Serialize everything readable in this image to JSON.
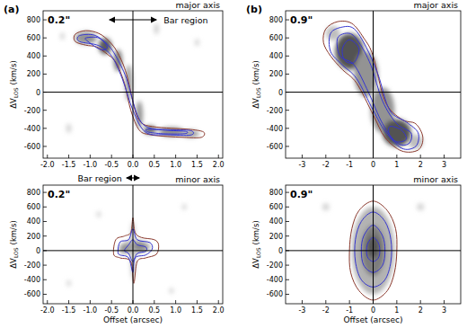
{
  "chart_data": [
    {
      "type": "contour",
      "panel_label": "(a)",
      "title": "major axis",
      "annotations": [
        {
          "text": "0.2\""
        },
        {
          "text": "Bar region",
          "x": [
            -0.55,
            0.55
          ]
        }
      ],
      "xlim": [
        -2.1,
        2.1
      ],
      "xticks": [
        {
          "value": -2,
          "label": "-2.0"
        },
        -1.5,
        {
          "value": -1,
          "label": "-1.0"
        },
        -0.5,
        {
          "value": 0,
          "label": "0.0"
        },
        0.5,
        {
          "value": 1,
          "label": "1.0"
        },
        1.5,
        {
          "value": 2,
          "label": "2.0"
        }
      ],
      "ylim": [
        -730,
        900
      ],
      "yticks": [
        -600,
        -400,
        -200,
        0,
        200,
        400,
        600,
        800
      ],
      "ylabel": [
        "ΔV",
        "LOS",
        "(km/s)"
      ],
      "hlines": [
        0
      ],
      "vlines": [
        0
      ],
      "emission": [
        {
          "x": -1.1,
          "y": 600,
          "dx": 0.25,
          "dy": 70,
          "level": 0.5
        },
        {
          "x": -0.65,
          "y": 510,
          "dx": 0.15,
          "dy": 90,
          "level": 0.75
        },
        {
          "x": -0.35,
          "y": 350,
          "dx": 0.1,
          "dy": 120,
          "level": 0.6
        },
        {
          "x": -0.1,
          "y": 100,
          "dx": 0.08,
          "dy": 200,
          "level": 0.45
        },
        {
          "x": 0.15,
          "y": -250,
          "dx": 0.08,
          "dy": 150,
          "level": 0.5
        },
        {
          "x": 0.4,
          "y": -420,
          "dx": 0.15,
          "dy": 50,
          "level": 0.65
        },
        {
          "x": 0.9,
          "y": -440,
          "dx": 0.3,
          "dy": 50,
          "level": 0.55
        },
        {
          "x": 1.35,
          "y": -460,
          "dx": 0.2,
          "dy": 40,
          "level": 0.45
        },
        {
          "x": 0.55,
          "y": 700,
          "dx": 0.05,
          "dy": 60,
          "level": 0.25
        },
        {
          "x": -1.5,
          "y": -400,
          "dx": 0.06,
          "dy": 50,
          "level": 0.2
        },
        {
          "x": 1.5,
          "y": 550,
          "dx": 0.05,
          "dy": 40,
          "level": 0.2
        },
        {
          "x": -1.65,
          "y": 620,
          "dx": 0.05,
          "dy": 40,
          "level": 0.2
        }
      ],
      "series": [
        {
          "color": "#8b3a2e",
          "x": [
            -1.35,
            -1.1,
            -0.8,
            -0.55,
            -0.35,
            -0.15,
            0.05,
            0.2,
            0.45,
            0.9,
            1.3,
            1.65,
            1.6,
            1.2,
            0.8,
            0.4,
            0.15,
            -0.05,
            -0.2,
            -0.4,
            -0.6,
            -0.85,
            -1.1,
            -1.35
          ],
          "y": [
            640,
            680,
            650,
            560,
            430,
            200,
            -200,
            -340,
            -380,
            -400,
            -410,
            -440,
            -500,
            -500,
            -490,
            -470,
            -420,
            -200,
            100,
            330,
            420,
            500,
            520,
            560
          ]
        },
        {
          "color": "#3535d0",
          "x": [
            -1.25,
            -0.9,
            -0.6,
            -0.4,
            -0.15,
            0.1,
            0.35,
            0.8,
            1.35,
            1.35,
            0.8,
            0.3,
            0.0,
            -0.25,
            -0.5,
            -0.8,
            -1.25
          ],
          "y": [
            625,
            630,
            530,
            400,
            150,
            -250,
            -390,
            -415,
            -425,
            -475,
            -470,
            -445,
            -200,
            150,
            400,
            515,
            560
          ]
        },
        {
          "color": "#3535d0",
          "x": [
            -1.1,
            -0.8,
            -0.6,
            -0.75,
            -1.05
          ],
          "y": [
            600,
            600,
            500,
            470,
            560
          ]
        },
        {
          "color": "#3535d0",
          "x": [
            0.35,
            0.9,
            1.25,
            1.2,
            0.7,
            0.35
          ],
          "y": [
            -410,
            -425,
            -435,
            -460,
            -460,
            -440
          ]
        }
      ]
    },
    {
      "type": "contour",
      "title": "minor axis",
      "annotations": [
        {
          "text": "0.2\""
        },
        {
          "text": "Bar region",
          "x": [
            -0.15,
            0.15
          ]
        }
      ],
      "xlim": [
        -2.1,
        2.1
      ],
      "xticks": [
        {
          "value": -2,
          "label": "-2.0"
        },
        -1.5,
        {
          "value": -1,
          "label": "-1.0"
        },
        -0.5,
        {
          "value": 0,
          "label": "0.0"
        },
        0.5,
        {
          "value": 1,
          "label": "1.0"
        },
        1.5,
        {
          "value": 2,
          "label": "2.0"
        }
      ],
      "ylim": [
        -730,
        900
      ],
      "yticks": [
        -600,
        -400,
        -200,
        0,
        200,
        400,
        600,
        800
      ],
      "xlabel": "Offset (arcsec)",
      "ylabel": [
        "ΔV",
        "LOS",
        "(km/s)"
      ],
      "hlines": [
        0
      ],
      "vlines": [
        0
      ],
      "emission": [
        {
          "x": 0.05,
          "y": 50,
          "dx": 0.35,
          "dy": 80,
          "level": 0.45
        },
        {
          "x": 0.0,
          "y": 0,
          "dx": 0.05,
          "dy": 400,
          "level": 0.35
        },
        {
          "x": 0.15,
          "y": 70,
          "dx": 0.15,
          "dy": 60,
          "level": 0.55
        },
        {
          "x": -0.2,
          "y": 20,
          "dx": 0.12,
          "dy": 60,
          "level": 0.5
        },
        {
          "x": -1.5,
          "y": -450,
          "dx": 0.05,
          "dy": 40,
          "level": 0.2
        },
        {
          "x": -0.8,
          "y": 500,
          "dx": 0.05,
          "dy": 40,
          "level": 0.2
        },
        {
          "x": 1.2,
          "y": 600,
          "dx": 0.05,
          "dy": 40,
          "level": 0.2
        },
        {
          "x": 0.9,
          "y": -550,
          "dx": 0.05,
          "dy": 40,
          "level": 0.2
        }
      ],
      "series": [
        {
          "color": "#8b3a2e",
          "x": [
            -0.45,
            -0.4,
            -0.2,
            -0.05,
            0.0,
            0.05,
            0.2,
            0.5,
            0.6,
            0.55,
            0.3,
            0.1,
            0.02,
            -0.05,
            -0.3
          ],
          "y": [
            -50,
            150,
            200,
            250,
            450,
            250,
            180,
            150,
            80,
            -50,
            -100,
            -150,
            -450,
            -150,
            -100
          ]
        },
        {
          "color": "#3535d0",
          "x": [
            -0.35,
            -0.3,
            -0.1,
            0.0,
            0.1,
            0.4,
            0.45,
            0.3,
            0.05,
            0.0,
            -0.1,
            -0.3
          ],
          "y": [
            -20,
            120,
            150,
            300,
            150,
            110,
            20,
            -60,
            -100,
            -300,
            -100,
            -60
          ]
        },
        {
          "color": "#3535d0",
          "x": [
            -0.2,
            -0.1,
            0.0,
            0.1,
            0.3,
            0.3,
            0.1,
            0.0,
            -0.1
          ],
          "y": [
            0,
            80,
            150,
            80,
            50,
            -10,
            -40,
            -150,
            -40
          ]
        }
      ]
    },
    {
      "type": "contour",
      "panel_label": "(b)",
      "title": "major axis",
      "annotations": [
        {
          "text": "0.9\""
        }
      ],
      "xlim": [
        -3.7,
        3.7
      ],
      "xticks": [
        -3,
        -2,
        -1,
        0,
        1,
        2,
        3
      ],
      "ylim": [
        -730,
        900
      ],
      "yticks": [
        -600,
        -400,
        -200,
        0,
        200,
        400,
        600,
        800
      ],
      "ylabel": [
        "ΔV",
        "LOS",
        "(km/s)"
      ],
      "hlines": [
        0
      ],
      "vlines": [
        0
      ],
      "emission": [
        {
          "x": -1.0,
          "y": 450,
          "dx": 0.6,
          "dy": 200,
          "level": 0.8
        },
        {
          "x": -0.3,
          "y": 200,
          "dx": 0.5,
          "dy": 250,
          "level": 0.5
        },
        {
          "x": 0.4,
          "y": -200,
          "dx": 0.5,
          "dy": 250,
          "level": 0.5
        },
        {
          "x": 1.0,
          "y": -450,
          "dx": 0.6,
          "dy": 150,
          "level": 0.8
        },
        {
          "x": -1.7,
          "y": 650,
          "dx": 0.3,
          "dy": 80,
          "level": 0.3
        },
        {
          "x": 1.8,
          "y": -550,
          "dx": 0.3,
          "dy": 80,
          "level": 0.3
        }
      ],
      "series": [
        {
          "color": "#8b3a2e",
          "x": [
            -2.0,
            -1.5,
            -0.9,
            -0.4,
            0.0,
            0.5,
            1.2,
            1.8,
            2.1,
            1.9,
            1.2,
            0.5,
            0.0,
            -0.7,
            -1.3,
            -1.8,
            -2.1
          ],
          "y": [
            700,
            780,
            760,
            600,
            400,
            -100,
            -300,
            -350,
            -500,
            -640,
            -650,
            -500,
            -250,
            100,
            250,
            400,
            550
          ]
        },
        {
          "color": "#3535d0",
          "x": [
            -1.8,
            -1.3,
            -0.8,
            -0.3,
            0.2,
            0.7,
            1.4,
            1.9,
            1.8,
            1.2,
            0.5,
            0.0,
            -0.7,
            -1.3,
            -1.8
          ],
          "y": [
            650,
            720,
            700,
            500,
            200,
            -200,
            -330,
            -450,
            -600,
            -620,
            -430,
            -200,
            150,
            300,
            450
          ]
        },
        {
          "color": "#3535d0",
          "x": [
            -1.5,
            -1.0,
            -0.6,
            -0.1,
            0.4,
            1.0,
            1.6,
            1.5,
            1.0,
            0.4,
            -0.2,
            -0.8,
            -1.4
          ],
          "y": [
            600,
            650,
            550,
            300,
            -100,
            -350,
            -450,
            -570,
            -560,
            -350,
            0,
            300,
            400
          ]
        },
        {
          "color": "#3535d0",
          "x": [
            -1.3,
            -1.0,
            -0.6,
            -0.8,
            -1.2
          ],
          "y": [
            480,
            580,
            480,
            330,
            350
          ]
        },
        {
          "color": "#3535d0",
          "x": [
            0.7,
            1.2,
            1.4,
            1.0,
            0.7
          ],
          "y": [
            -380,
            -420,
            -520,
            -550,
            -480
          ]
        }
      ]
    },
    {
      "type": "contour",
      "title": "minor axis",
      "annotations": [
        {
          "text": "0.9\""
        }
      ],
      "xlim": [
        -3.7,
        3.7
      ],
      "xticks": [
        -3,
        -2,
        -1,
        0,
        1,
        2,
        3
      ],
      "ylim": [
        -730,
        900
      ],
      "yticks": [
        -600,
        -400,
        -200,
        0,
        200,
        400,
        600,
        800
      ],
      "xlabel": "Offset (arcsec)",
      "ylabel": [
        "ΔV",
        "LOS",
        "(km/s)"
      ],
      "hlines": [
        0
      ],
      "vlines": [
        0
      ],
      "emission": [
        {
          "x": 0.0,
          "y": 0,
          "dx": 0.9,
          "dy": 600,
          "level": 0.35
        },
        {
          "x": 0.0,
          "y": 0,
          "dx": 0.5,
          "dy": 350,
          "level": 0.6
        },
        {
          "x": 0.0,
          "y": 50,
          "dx": 0.25,
          "dy": 150,
          "level": 0.8
        },
        {
          "x": -2.0,
          "y": 600,
          "dx": 0.15,
          "dy": 50,
          "level": 0.2
        },
        {
          "x": 2.0,
          "y": 600,
          "dx": 0.15,
          "dy": 50,
          "level": 0.2
        }
      ],
      "series": [
        {
          "color": "#8b3a2e",
          "x": [
            0.0,
            0.6,
            0.95,
            1.0,
            0.9,
            0.6,
            0.0,
            -0.6,
            -0.95,
            -1.0,
            -0.9,
            -0.6
          ],
          "y": [
            680,
            550,
            300,
            0,
            -300,
            -550,
            -680,
            -550,
            -300,
            0,
            300,
            550
          ]
        },
        {
          "color": "#3535d0",
          "x": [
            0.0,
            0.5,
            0.75,
            0.75,
            0.5,
            0.0,
            -0.5,
            -0.75,
            -0.75,
            -0.5
          ],
          "y": [
            530,
            400,
            150,
            -150,
            -400,
            -500,
            -400,
            -150,
            150,
            400
          ]
        },
        {
          "color": "#3535d0",
          "x": [
            0.0,
            0.4,
            0.5,
            0.4,
            0.0,
            -0.4,
            -0.5,
            -0.4
          ],
          "y": [
            350,
            200,
            0,
            -200,
            -300,
            -200,
            0,
            200
          ]
        },
        {
          "color": "#3535d0",
          "x": [
            0.0,
            0.25,
            0.25,
            0.0,
            -0.25,
            -0.25
          ],
          "y": [
            180,
            80,
            -80,
            -150,
            -80,
            80
          ]
        }
      ]
    }
  ]
}
